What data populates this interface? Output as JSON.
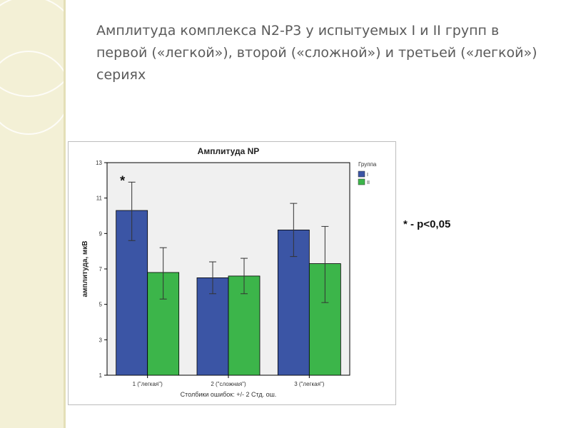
{
  "slide": {
    "title": "Амплитуда комплекса N2-P3 у испытуемых I и II групп в первой («легкой»), второй («сложной») и третьей («легкой») сериях",
    "note": "* - p<0,05"
  },
  "chart_data": {
    "type": "bar",
    "title": "Амплитуда NP",
    "xlabel": "Столбики ошибок: +/- 2 Стд. ош.",
    "ylabel": "амплитуда, мкВ",
    "ylim": [
      1,
      13
    ],
    "yticks": [
      1,
      3,
      5,
      7,
      9,
      11,
      13
    ],
    "grid": false,
    "legend": {
      "title": "Группа",
      "position": "top-right"
    },
    "categories": [
      "1 (\"легкая\")",
      "2 (\"сложная\")",
      "3 (\"легкая\")"
    ],
    "series": [
      {
        "name": "I",
        "color": "#3b55a5",
        "values": [
          10.3,
          6.5,
          9.2
        ],
        "err_low": [
          8.6,
          5.6,
          7.7
        ],
        "err_high": [
          11.9,
          7.4,
          10.7
        ]
      },
      {
        "name": "II",
        "color": "#3cb54a",
        "values": [
          6.8,
          6.6,
          7.3
        ],
        "err_low": [
          5.3,
          5.6,
          5.1
        ],
        "err_high": [
          8.2,
          7.6,
          9.4
        ]
      }
    ],
    "annotations": [
      {
        "text": "*",
        "category_index": 0,
        "series_index": 0
      }
    ]
  }
}
